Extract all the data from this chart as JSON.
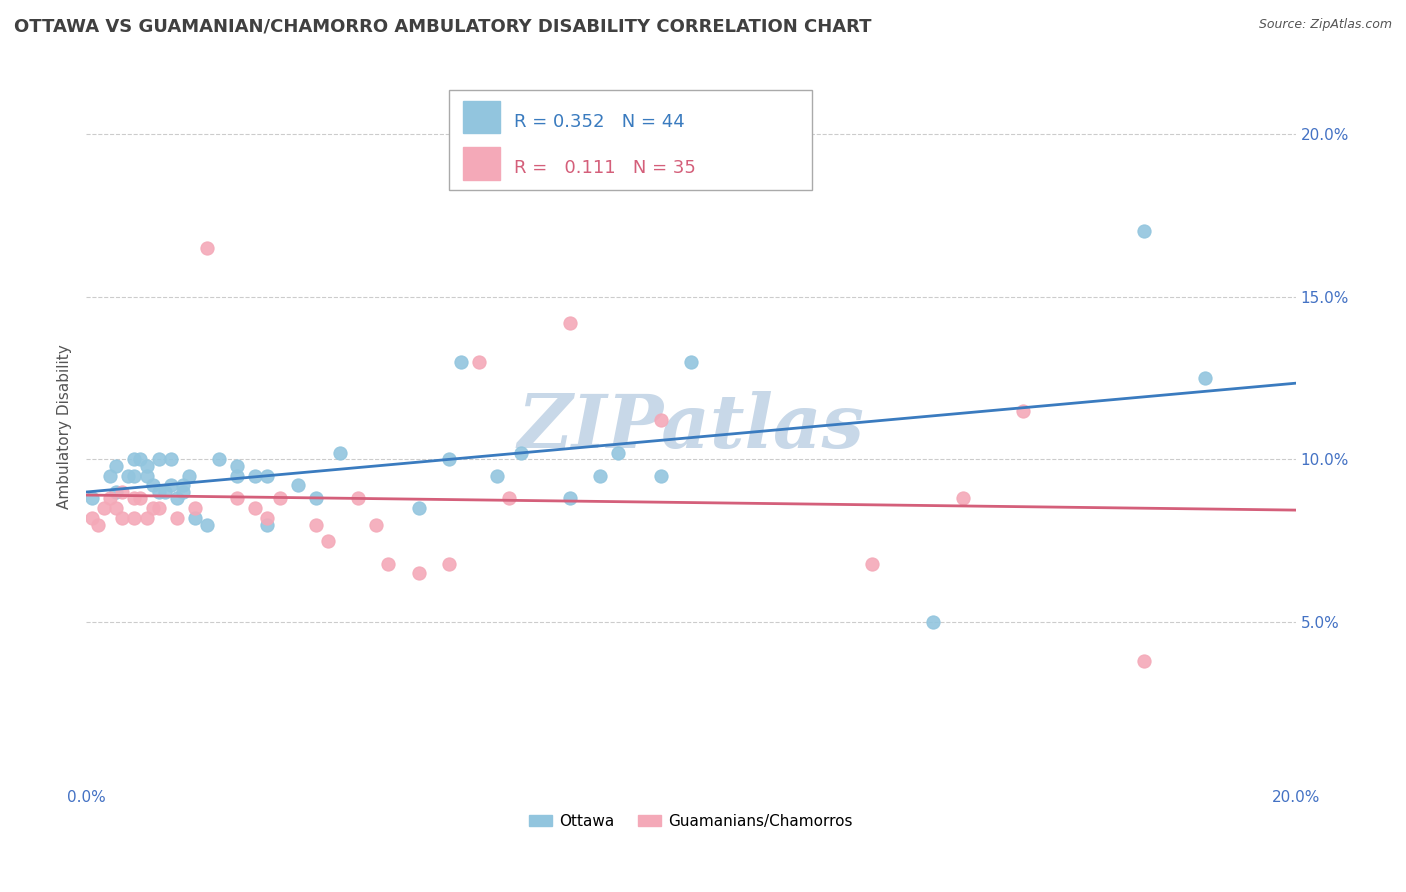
{
  "title": "OTTAWA VS GUAMANIAN/CHAMORRO AMBULATORY DISABILITY CORRELATION CHART",
  "source_text": "Source: ZipAtlas.com",
  "ylabel": "Ambulatory Disability",
  "xlim": [
    0.0,
    0.2
  ],
  "ylim": [
    0.0,
    0.22
  ],
  "ytick_vals": [
    0.05,
    0.1,
    0.15,
    0.2
  ],
  "ytick_labels": [
    "5.0%",
    "10.0%",
    "15.0%",
    "20.0%"
  ],
  "xtick_vals": [
    0.0,
    0.2
  ],
  "xtick_labels": [
    "0.0%",
    "20.0%"
  ],
  "ottawa_color": "#92c5de",
  "chamorro_color": "#f4a9b8",
  "trendline_ottawa_color": "#3a7bbf",
  "trendline_chamorro_color": "#d45f7a",
  "R_ottawa": 0.352,
  "N_ottawa": 44,
  "R_chamorro": 0.111,
  "N_chamorro": 35,
  "watermark_text": "ZIPatlas",
  "watermark_color": "#c8d8e8",
  "ottawa_x": [
    0.001,
    0.004,
    0.005,
    0.005,
    0.007,
    0.008,
    0.008,
    0.009,
    0.01,
    0.01,
    0.011,
    0.012,
    0.012,
    0.013,
    0.014,
    0.014,
    0.015,
    0.016,
    0.016,
    0.017,
    0.018,
    0.02,
    0.022,
    0.025,
    0.025,
    0.028,
    0.03,
    0.03,
    0.035,
    0.038,
    0.042,
    0.055,
    0.06,
    0.062,
    0.068,
    0.072,
    0.08,
    0.085,
    0.088,
    0.095,
    0.1,
    0.14,
    0.175,
    0.185
  ],
  "ottawa_y": [
    0.088,
    0.095,
    0.09,
    0.098,
    0.095,
    0.095,
    0.1,
    0.1,
    0.095,
    0.098,
    0.092,
    0.09,
    0.1,
    0.09,
    0.092,
    0.1,
    0.088,
    0.09,
    0.092,
    0.095,
    0.082,
    0.08,
    0.1,
    0.095,
    0.098,
    0.095,
    0.08,
    0.095,
    0.092,
    0.088,
    0.102,
    0.085,
    0.1,
    0.13,
    0.095,
    0.102,
    0.088,
    0.095,
    0.102,
    0.095,
    0.13,
    0.05,
    0.17,
    0.125
  ],
  "chamorro_x": [
    0.001,
    0.002,
    0.003,
    0.004,
    0.005,
    0.006,
    0.006,
    0.008,
    0.008,
    0.009,
    0.01,
    0.011,
    0.012,
    0.015,
    0.018,
    0.02,
    0.025,
    0.028,
    0.03,
    0.032,
    0.038,
    0.04,
    0.045,
    0.048,
    0.05,
    0.055,
    0.06,
    0.065,
    0.07,
    0.08,
    0.095,
    0.13,
    0.145,
    0.155,
    0.175
  ],
  "chamorro_y": [
    0.082,
    0.08,
    0.085,
    0.088,
    0.085,
    0.082,
    0.09,
    0.082,
    0.088,
    0.088,
    0.082,
    0.085,
    0.085,
    0.082,
    0.085,
    0.165,
    0.088,
    0.085,
    0.082,
    0.088,
    0.08,
    0.075,
    0.088,
    0.08,
    0.068,
    0.065,
    0.068,
    0.13,
    0.088,
    0.142,
    0.112,
    0.068,
    0.088,
    0.115,
    0.038
  ],
  "background_color": "#ffffff",
  "grid_color": "#cccccc",
  "title_color": "#404040",
  "axis_label_color": "#555555",
  "tick_color": "#4472c4",
  "title_fontsize": 13,
  "label_fontsize": 11,
  "tick_fontsize": 11,
  "legend_fontsize": 13
}
